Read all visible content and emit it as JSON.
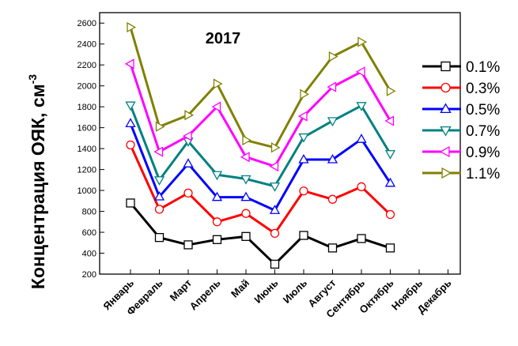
{
  "chart_data": {
    "type": "line",
    "title": "2017",
    "ylabel": "Концентрация ОЯК, см",
    "ylabel_sup": "-3",
    "xlabel": "",
    "categories": [
      "Январь",
      "Февраль",
      "Март",
      "Апрель",
      "Май",
      "Июнь",
      "Июль",
      "Август",
      "Сентябрь",
      "Октябрь",
      "Ноябрь",
      "Декабрь"
    ],
    "yticks": [
      200,
      400,
      600,
      800,
      1000,
      1200,
      1400,
      1600,
      1800,
      2000,
      2200,
      2400,
      2600
    ],
    "ylim": [
      200,
      2700
    ],
    "grid": false,
    "legend_position": "right",
    "series": [
      {
        "name": "0.1%",
        "color": "#000000",
        "marker": "square",
        "values": [
          880,
          550,
          480,
          530,
          560,
          295,
          570,
          450,
          540,
          450,
          null,
          null
        ]
      },
      {
        "name": "0.3%",
        "color": "#ff0000",
        "marker": "circle",
        "values": [
          1435,
          820,
          975,
          700,
          780,
          590,
          995,
          915,
          1035,
          770,
          null,
          null
        ]
      },
      {
        "name": "0.5%",
        "color": "#0000ff",
        "marker": "triangle-up",
        "values": [
          1640,
          940,
          1255,
          935,
          935,
          810,
          1295,
          1295,
          1490,
          1070,
          null,
          null
        ]
      },
      {
        "name": "0.7%",
        "color": "#008080",
        "marker": "triangle-down",
        "values": [
          1815,
          1100,
          1470,
          1150,
          1110,
          1040,
          1510,
          1665,
          1810,
          1350,
          null,
          null
        ]
      },
      {
        "name": "0.9%",
        "color": "#ff00ff",
        "marker": "triangle-left",
        "values": [
          2210,
          1370,
          1520,
          1800,
          1320,
          1230,
          1710,
          1990,
          2135,
          1665,
          null,
          null
        ]
      },
      {
        "name": "1.1%",
        "color": "#808000",
        "marker": "triangle-right",
        "values": [
          2560,
          1610,
          1720,
          2020,
          1480,
          1410,
          1920,
          2280,
          2420,
          1950,
          null,
          null
        ]
      }
    ]
  }
}
